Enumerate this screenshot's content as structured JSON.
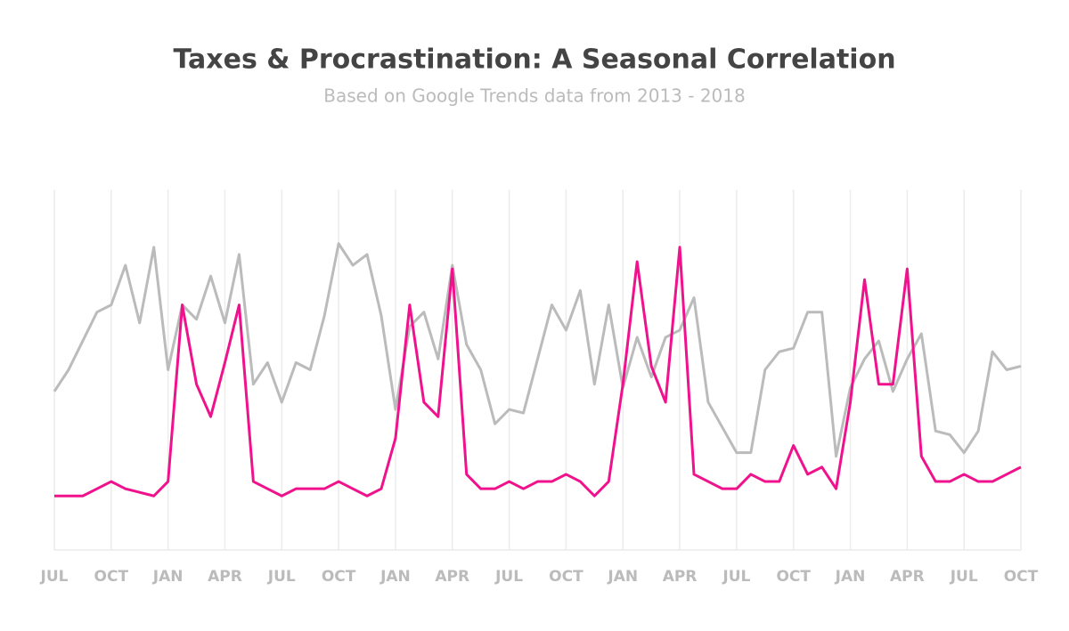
{
  "chart_data": {
    "type": "line",
    "title": "Taxes & Procrastination: A Seasonal Correlation",
    "subtitle": "Based on Google Trends data from 2013 - 2018",
    "categories": [
      "JUL",
      null,
      null,
      null,
      "OCT",
      null,
      null,
      null,
      "JAN",
      null,
      null,
      null,
      "APR",
      null,
      null,
      null,
      "JUL",
      null,
      null,
      null,
      "OCT",
      null,
      null,
      null,
      "JAN",
      null,
      null,
      null,
      "APR",
      null,
      null,
      null,
      "JUL",
      null,
      null,
      null,
      "OCT",
      null,
      null,
      null,
      "JAN",
      null,
      null,
      null,
      "APR",
      null,
      null,
      null,
      "JUL",
      null,
      null,
      null,
      "OCT",
      null,
      null,
      null,
      "JAN",
      null,
      null,
      null,
      "APR",
      null,
      null,
      null,
      "JUL",
      null,
      null,
      null,
      "OCT"
    ],
    "series": [
      {
        "color": "#bbbbbb",
        "values": [
          44,
          50,
          58,
          66,
          68,
          79,
          63,
          84,
          50,
          68,
          64,
          76,
          63,
          82,
          46,
          52,
          41,
          52,
          50,
          65,
          85,
          79,
          82,
          65,
          39,
          62,
          66,
          53,
          79,
          57,
          50,
          35,
          39,
          38,
          53,
          68,
          61,
          72,
          46,
          68,
          45,
          59,
          48,
          59,
          61,
          70,
          41,
          34,
          27,
          27,
          50,
          55,
          56,
          66,
          66,
          26,
          45,
          53,
          58,
          44,
          53,
          60,
          33,
          32,
          27,
          33,
          55,
          50,
          51
        ]
      },
      {
        "color": "#f0128c",
        "values": [
          15,
          15,
          15,
          17,
          19,
          17,
          16,
          15,
          19,
          68,
          46,
          37,
          52,
          68,
          19,
          17,
          15,
          17,
          17,
          17,
          19,
          17,
          15,
          17,
          31,
          68,
          41,
          37,
          78,
          21,
          17,
          17,
          19,
          17,
          19,
          19,
          21,
          19,
          15,
          19,
          46,
          80,
          51,
          41,
          84,
          21,
          19,
          17,
          17,
          21,
          19,
          19,
          29,
          21,
          23,
          17,
          41,
          75,
          46,
          46,
          78,
          26,
          19,
          19,
          21,
          19,
          19,
          21,
          23
        ]
      }
    ],
    "ylim": [
      0,
      100
    ],
    "grid": true
  }
}
